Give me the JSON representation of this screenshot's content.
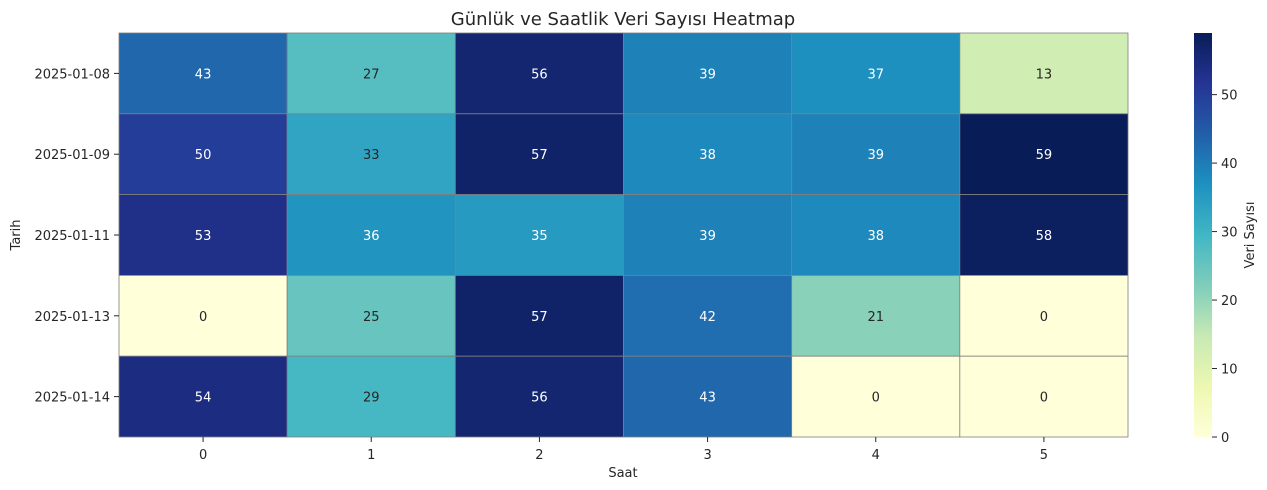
{
  "chart_data": {
    "type": "heatmap",
    "title": "Günlük ve Saatlik Veri Sayısı Heatmap",
    "xlabel": "Saat",
    "ylabel": "Tarih",
    "x": [
      "0",
      "1",
      "2",
      "3",
      "4",
      "5"
    ],
    "y": [
      "2025-01-08",
      "2025-01-09",
      "2025-01-11",
      "2025-01-13",
      "2025-01-14"
    ],
    "values": [
      [
        43,
        27,
        56,
        39,
        37,
        13
      ],
      [
        50,
        33,
        57,
        38,
        39,
        59
      ],
      [
        53,
        36,
        35,
        39,
        38,
        58
      ],
      [
        0,
        25,
        57,
        42,
        21,
        0
      ],
      [
        54,
        29,
        56,
        43,
        0,
        0
      ]
    ],
    "colorbar": {
      "label": "Veri Sayısı",
      "colormap": "YlGnBu",
      "range": [
        0,
        59
      ],
      "ticks": [
        0,
        10,
        20,
        30,
        40,
        50
      ]
    },
    "annotations": true,
    "cell_border_color": "#808080"
  }
}
